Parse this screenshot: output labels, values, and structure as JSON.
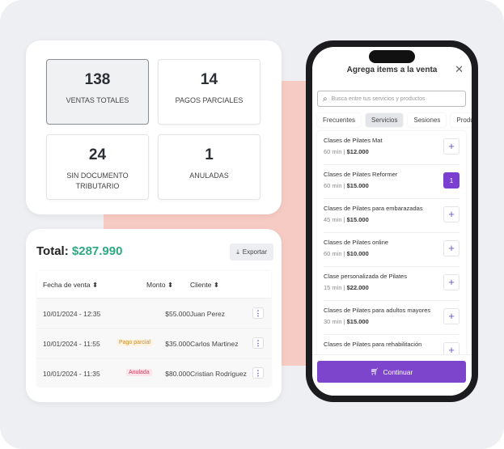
{
  "stats": [
    {
      "value": "138",
      "label": "VENTAS TOTALES",
      "selected": true
    },
    {
      "value": "14",
      "label": "PAGOS PARCIALES"
    },
    {
      "value": "24",
      "label": "SIN DOCUMENTO TRIBUTARIO"
    },
    {
      "value": "1",
      "label": "ANULADAS"
    }
  ],
  "sales": {
    "total_label": "Total:",
    "total": "$287.990",
    "export_label": "Exportar",
    "columns": [
      "Fecha de venta",
      "Monto",
      "Cliente"
    ],
    "rows": [
      {
        "date": "10/01/2024 - 12:35",
        "badge": "",
        "amount": "$55.000",
        "client": "Juan Perez"
      },
      {
        "date": "10/01/2024 - 11:55",
        "badge": "Pago parcial",
        "amount": "$35.000",
        "client": "Carlos Martinez"
      },
      {
        "date": "10/01/2024 - 11:35",
        "badge": "Anulada",
        "amount": "$80.000",
        "client": "Cristian Rodriguez"
      }
    ]
  },
  "modal": {
    "title": "Agrega items a la venta",
    "search_placeholder": "Busca entre tus servicios y productos",
    "tabs": [
      "Frecuentes",
      "Servicios",
      "Sesiones",
      "Productos"
    ],
    "active_tab": "Servicios",
    "items": [
      {
        "name": "Clases de Pilates Mat",
        "duration": "60 min",
        "price": "$12.000",
        "qty": ""
      },
      {
        "name": "Clases de Pilates Reformer",
        "duration": "60 min",
        "price": "$15.000",
        "qty": "1"
      },
      {
        "name": "Clases de Pilates para embarazadas",
        "duration": "45 min",
        "price": "$15.000",
        "qty": ""
      },
      {
        "name": "Clases de Pilates online",
        "duration": "60 min",
        "price": "$10.000",
        "qty": ""
      },
      {
        "name": "Clase personalizada de Pilates",
        "duration": "15 min",
        "price": "$22.000",
        "qty": ""
      },
      {
        "name": "Clases de Pilates para adultos mayores",
        "duration": "30 min",
        "price": "$15.000",
        "qty": ""
      },
      {
        "name": "Clases de Pilates para rehabilitación",
        "duration": "",
        "price": "",
        "qty": ""
      }
    ],
    "continue_label": "Continuar"
  },
  "colors": {
    "accent": "#7c45cc",
    "total": "#2fa882"
  }
}
